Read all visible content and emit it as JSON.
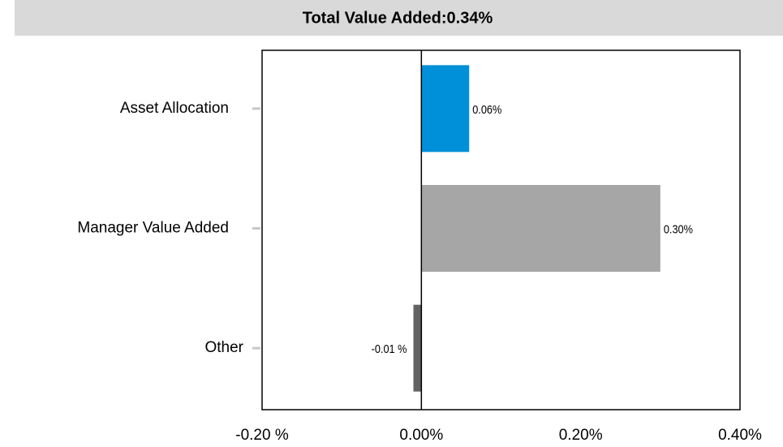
{
  "chart_data": {
    "type": "hbar",
    "title": "Total Value Added:0.34%",
    "categories": [
      "Asset Allocation",
      "Manager Value Added",
      "Other"
    ],
    "values": [
      0.06,
      0.3,
      -0.01
    ],
    "value_labels": [
      "0.06%",
      "0.30%",
      "-0.01 %"
    ],
    "colors": [
      "#0090d9",
      "#a6a6a6",
      "#636363"
    ],
    "xlim": [
      -0.2,
      0.4
    ],
    "xticks": [
      {
        "value": -0.2,
        "label": "-0.20 %"
      },
      {
        "value": 0,
        "label": "0.00%"
      },
      {
        "value": 0.2,
        "label": "0.20%"
      },
      {
        "value": 0.4,
        "label": "0.40%"
      }
    ],
    "grid": false
  }
}
